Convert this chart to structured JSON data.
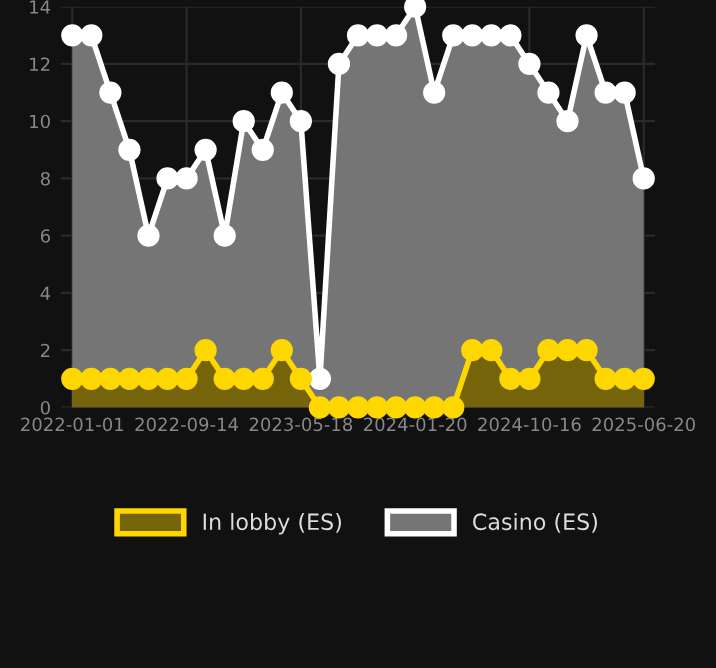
{
  "chart_data": {
    "type": "area",
    "categories": [
      "2022-01-01",
      null,
      null,
      null,
      null,
      null,
      "2022-09-14",
      null,
      null,
      null,
      null,
      null,
      "2023-05-18",
      null,
      null,
      null,
      null,
      null,
      "2024-01-20",
      null,
      null,
      null,
      null,
      null,
      "2024-10-16",
      null,
      null,
      null,
      null,
      null,
      "2025-06-20"
    ],
    "series": [
      {
        "name": "In lobby (ES)",
        "color": "#ffd700",
        "values": [
          1,
          1,
          1,
          1,
          1,
          1,
          1,
          2,
          1,
          1,
          1,
          2,
          1,
          0,
          0,
          0,
          0,
          0,
          0,
          0,
          0,
          2,
          2,
          1,
          1,
          2,
          2,
          2,
          1,
          1,
          1
        ]
      },
      {
        "name": "Casino (ES)",
        "color": "#ffffff",
        "values": [
          13,
          13,
          11,
          9,
          6,
          8,
          8,
          9,
          6,
          10,
          9,
          11,
          10,
          1,
          12,
          13,
          13,
          13,
          14,
          11,
          13,
          13,
          13,
          13,
          12,
          11,
          10,
          13,
          11,
          11,
          8
        ]
      }
    ],
    "ylim": [
      0,
      14
    ],
    "yticks": [
      0,
      2,
      4,
      6,
      8,
      10,
      12,
      14
    ],
    "grid": true,
    "legend": "bottom",
    "marker": "circle"
  }
}
